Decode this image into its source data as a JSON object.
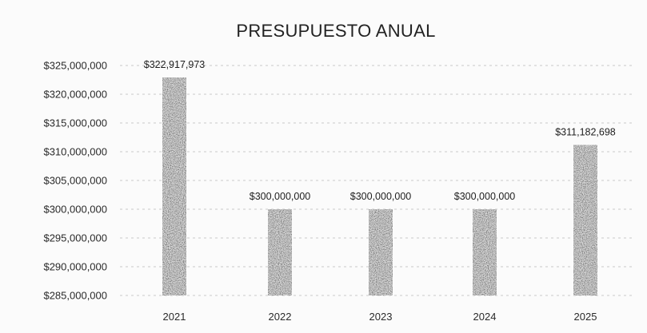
{
  "chart_data": {
    "type": "bar",
    "title": "PRESUPUESTO ANUAL",
    "xlabel": "",
    "ylabel": "",
    "categories": [
      "2021",
      "2022",
      "2023",
      "2024",
      "2025"
    ],
    "values": [
      322917973,
      300000000,
      300000000,
      300000000,
      311182698
    ],
    "data_labels": [
      "$322,917,973",
      "$300,000,000",
      "$300,000,000",
      "$300,000,000",
      "$311,182,698"
    ],
    "ylim": [
      285000000,
      325000000
    ],
    "y_ticks": [
      285000000,
      290000000,
      295000000,
      300000000,
      305000000,
      310000000,
      315000000,
      320000000,
      325000000
    ],
    "y_tick_labels": [
      "$285,000,000",
      "$290,000,000",
      "$295,000,000",
      "$300,000,000",
      "$305,000,000",
      "$310,000,000",
      "$315,000,000",
      "$320,000,000",
      "$325,000,000"
    ],
    "grid": true,
    "legend": "none",
    "bar_color": "#5a5a5a"
  }
}
